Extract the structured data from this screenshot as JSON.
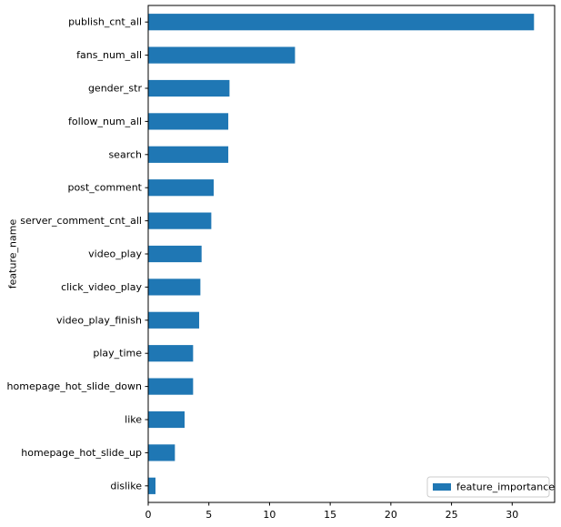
{
  "chart_data": {
    "type": "bar",
    "orientation": "horizontal",
    "title": "",
    "xlabel": "",
    "ylabel": "feature_name",
    "xlim": [
      0,
      33.5
    ],
    "xticks": [
      0,
      5,
      10,
      15,
      20,
      25,
      30
    ],
    "grid": false,
    "legend_position": "lower-right",
    "categories": [
      "publish_cnt_all",
      "fans_num_all",
      "gender_str",
      "follow_num_all",
      "search",
      "post_comment",
      "server_comment_cnt_all",
      "video_play",
      "click_video_play",
      "video_play_finish",
      "play_time",
      "homepage_hot_slide_down",
      "like",
      "homepage_hot_slide_up",
      "dislike"
    ],
    "series": [
      {
        "name": "feature_importance",
        "color": "#1f77b4",
        "values": [
          31.8,
          12.1,
          6.7,
          6.6,
          6.6,
          5.4,
          5.2,
          4.4,
          4.3,
          4.2,
          3.7,
          3.7,
          3.0,
          2.2,
          0.6
        ]
      }
    ]
  }
}
